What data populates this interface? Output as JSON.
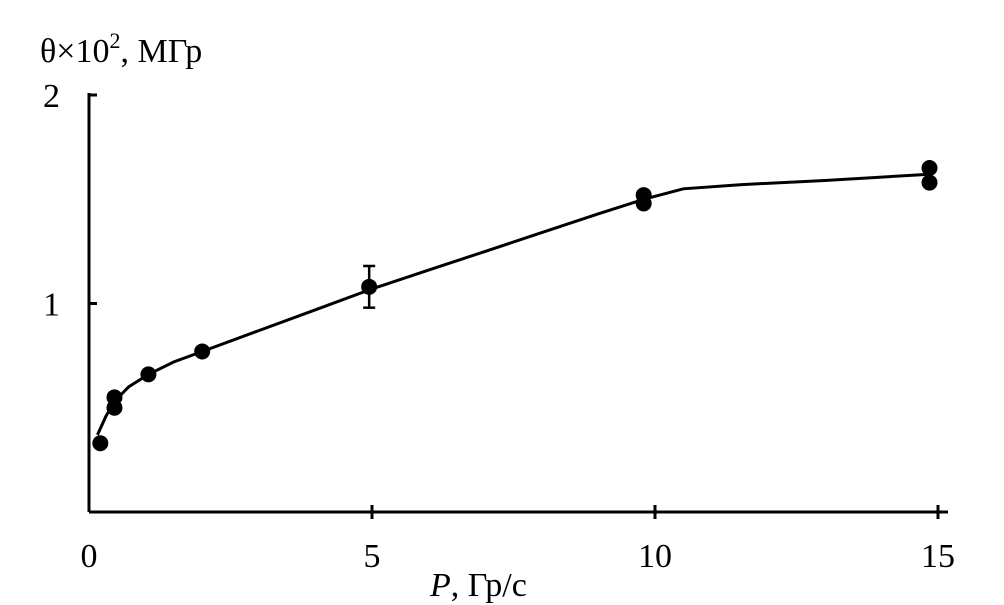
{
  "chart_data": {
    "type": "scatter",
    "ylabel": "θ×10², МГр",
    "ylabel_parts": {
      "symbol": "θ",
      "times": "×",
      "base": "10",
      "exponent": "2",
      "unit": ", МГр"
    },
    "xlabel": "P, Гр/с",
    "xlabel_parts": {
      "symbol": "P",
      "unit": ", Гр/с"
    },
    "xlim": [
      0,
      15
    ],
    "ylim": [
      0,
      2
    ],
    "x_ticks": [
      0,
      5,
      10,
      15
    ],
    "x_tick_labels": [
      "0",
      "5",
      "10",
      "15"
    ],
    "y_ticks": [
      1,
      2
    ],
    "y_tick_labels": [
      "1",
      "2"
    ],
    "grid": false,
    "legend": "none",
    "points": [
      {
        "x": 0.2,
        "y": 0.33
      },
      {
        "x": 0.45,
        "y": 0.55
      },
      {
        "x": 0.45,
        "y": 0.5
      },
      {
        "x": 1.05,
        "y": 0.66
      },
      {
        "x": 2.0,
        "y": 0.77
      },
      {
        "x": 4.95,
        "y": 1.08,
        "yerr": 0.1
      },
      {
        "x": 9.8,
        "y": 1.52
      },
      {
        "x": 9.8,
        "y": 1.48
      },
      {
        "x": 14.85,
        "y": 1.65
      },
      {
        "x": 14.85,
        "y": 1.58
      }
    ],
    "fit_curve": [
      [
        0.15,
        0.37
      ],
      [
        0.2,
        0.4
      ],
      [
        0.3,
        0.46
      ],
      [
        0.45,
        0.53
      ],
      [
        0.7,
        0.6
      ],
      [
        1.05,
        0.66
      ],
      [
        1.5,
        0.72
      ],
      [
        2.0,
        0.77
      ],
      [
        3.0,
        0.87
      ],
      [
        4.0,
        0.97
      ],
      [
        5.0,
        1.07
      ],
      [
        6.0,
        1.16
      ],
      [
        7.0,
        1.25
      ],
      [
        8.0,
        1.34
      ],
      [
        9.0,
        1.43
      ],
      [
        9.8,
        1.5
      ],
      [
        10.5,
        1.55
      ],
      [
        11.5,
        1.57
      ],
      [
        13.0,
        1.59
      ],
      [
        14.85,
        1.62
      ]
    ]
  }
}
